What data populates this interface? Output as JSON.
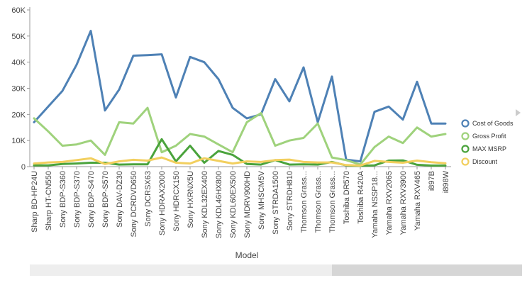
{
  "chart_data": {
    "type": "line",
    "xlabel": "Model",
    "ylabel": "",
    "ylim": [
      0,
      60000
    ],
    "yticks": [
      {
        "value": 0,
        "label": "0"
      },
      {
        "value": 10000,
        "label": "10K"
      },
      {
        "value": 20000,
        "label": "20K"
      },
      {
        "value": 30000,
        "label": "30K"
      },
      {
        "value": 40000,
        "label": "40K"
      },
      {
        "value": 50000,
        "label": "50K"
      },
      {
        "value": 60000,
        "label": "60K"
      }
    ],
    "grid": false,
    "legend_position": "right",
    "categories": [
      "Sharp BD-HP24U",
      "Sharp HT-CN550",
      "Sony BDP-S360",
      "Sony BDP-S370",
      "Sony BDP-S470",
      "Sony BDP-S570",
      "Sony DAV-DZ30",
      "Sony DCRDVD650",
      "Sony DCRSX63",
      "Sony HDRAX2000",
      "Sony HDRCX150",
      "Sony HXRNX5U",
      "Sony KDL32EX400",
      "Sony KDL46HX800",
      "Sony KDL60EX500",
      "Sony MDRV900HD",
      "Sony MHSCM5V",
      "Sony STRDA1500",
      "Sony STRDH810",
      "Thomson Grass...",
      "Thomson Grass...",
      "Thomson Grass...",
      "Toshiba DR570",
      "Toshiba R420A",
      "Yamaha NSSP18...",
      "Yamaha RXV2065",
      "Yamaha RXV3900",
      "Yamaha RXV465",
      "i897B",
      "i898W"
    ],
    "series": [
      {
        "name": "Cost of Goods",
        "color": "#4e81b5",
        "values": [
          17000,
          23000,
          29000,
          39000,
          52000,
          21500,
          29500,
          42500,
          42700,
          43000,
          26500,
          42000,
          40000,
          33500,
          22500,
          18500,
          20000,
          33500,
          25000,
          38000,
          17000,
          34500,
          2700,
          2000,
          21000,
          23000,
          18000,
          32500,
          16500,
          16500
        ]
      },
      {
        "name": "Gross Profit",
        "color": "#9fd27c",
        "values": [
          18500,
          13500,
          8000,
          8500,
          10000,
          4500,
          17000,
          16500,
          22500,
          5500,
          8000,
          12500,
          11500,
          8500,
          5500,
          17000,
          20500,
          8000,
          10000,
          11000,
          16500,
          3500,
          2500,
          800,
          7500,
          11500,
          9000,
          15000,
          11500,
          12500
        ]
      },
      {
        "name": "MAX MSRP",
        "color": "#4aa33c",
        "values": [
          500,
          500,
          1000,
          1200,
          1500,
          1500,
          800,
          900,
          900,
          10500,
          2000,
          8000,
          1500,
          6000,
          4500,
          1000,
          800,
          2500,
          800,
          900,
          800,
          1800,
          500,
          300,
          500,
          2300,
          2400,
          700,
          400,
          400
        ]
      },
      {
        "name": "Discount",
        "color": "#f2cf5e",
        "values": [
          1200,
          1600,
          1800,
          2500,
          3200,
          1000,
          2000,
          2600,
          2300,
          3500,
          1500,
          1200,
          3200,
          2200,
          1200,
          2000,
          1800,
          2500,
          2700,
          1800,
          1600,
          1600,
          600,
          400,
          2200,
          1800,
          1500,
          2300,
          1700,
          1300
        ]
      }
    ]
  }
}
